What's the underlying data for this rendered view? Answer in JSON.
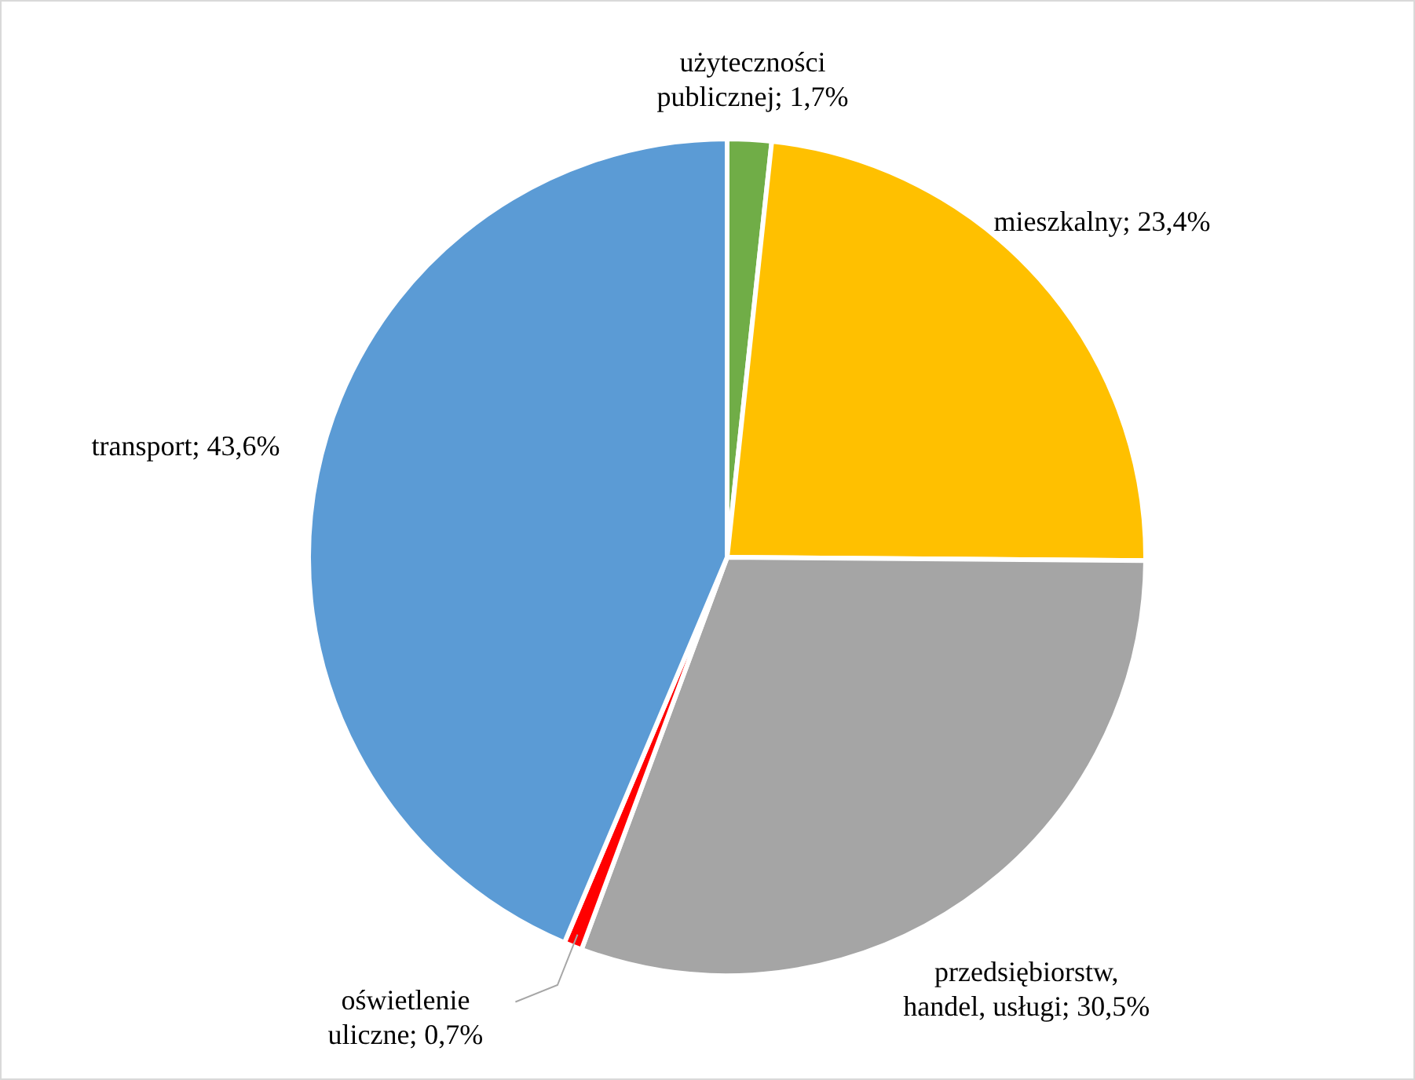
{
  "chart_data": {
    "type": "pie",
    "categories": [
      "użyteczności publicznej",
      "mieszkalny",
      "przedsiębiorstw, handel, usługi",
      "oświetlenie uliczne",
      "transport"
    ],
    "values": [
      1.7,
      23.4,
      30.5,
      0.7,
      43.6
    ],
    "value_labels": [
      "1,7%",
      "23,4%",
      "30,5%",
      "0,7%",
      "43,6%"
    ],
    "colors": [
      "#70ad47",
      "#ffc000",
      "#a5a5a5",
      "#ff0000",
      "#5b9bd5"
    ],
    "legend": false
  }
}
